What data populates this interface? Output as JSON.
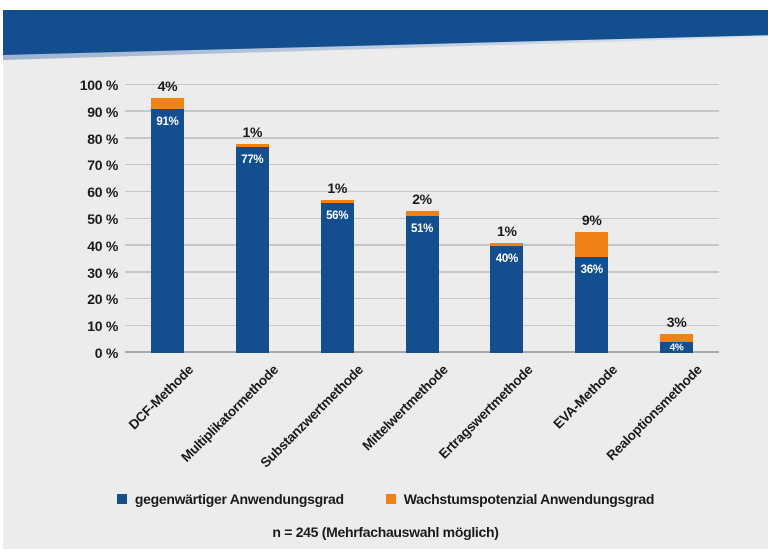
{
  "page": {
    "background": "#ffffff",
    "panel_background": "#ececec",
    "text_color": "#1a1a1a"
  },
  "banner": {
    "color": "#134e8e"
  },
  "chart_data": {
    "type": "bar",
    "stacked": true,
    "title": "",
    "xlabel": "",
    "ylabel": "",
    "categories": [
      "DCF-Methode",
      "Multiplikatormethode",
      "Substanzwertmethode",
      "Mittelwertmethode",
      "Ertragswertmethode",
      "EVA-Methode",
      "Realoptionsmethode"
    ],
    "series": [
      {
        "name": "gegenwärtiger Anwendungsgrad",
        "color": "#134e8e",
        "values": [
          91,
          77,
          56,
          51,
          40,
          36,
          4
        ]
      },
      {
        "name": "Wachstumspotenzial Anwendungsgrad",
        "color": "#ef8214",
        "values": [
          4,
          1,
          1,
          2,
          1,
          9,
          3
        ]
      }
    ],
    "ylim": [
      0,
      100
    ],
    "ytick_step": 10,
    "ytick_suffix": " %",
    "ytick_labels": [
      "0 %",
      "10 %",
      "20 %",
      "30 %",
      "40 %",
      "50 %",
      "60 %",
      "70 %",
      "80 %",
      "90 %",
      "100 %"
    ],
    "value_suffix": "%",
    "grid": true,
    "grid_color": "#c6c6c6",
    "baseline_color": "#a9a9a9",
    "legend_position": "bottom",
    "footnote": "n = 245 (Mehrfachauswahl möglich)"
  }
}
